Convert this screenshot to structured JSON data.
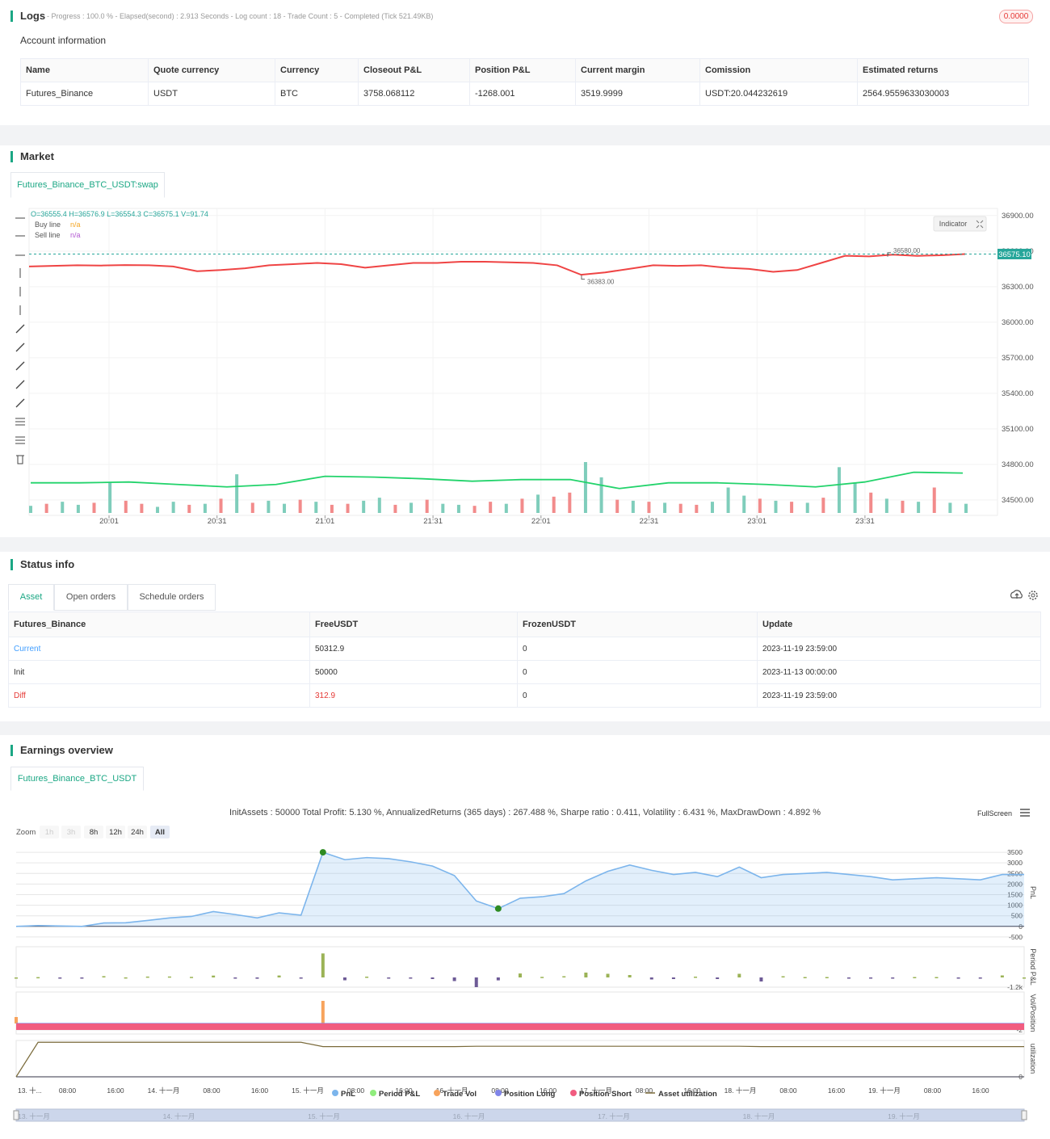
{
  "logs": {
    "title": "Logs",
    "summary": "- Progress : 100.0 % - Elapsed(second) : 2.913 Seconds - Log count : 18 - Trade Count : 5 - Completed (Tick 521.49KB)",
    "badge": "0.0000"
  },
  "account": {
    "title": "Account information",
    "table": {
      "columns": [
        "Name",
        "Quote currency",
        "Currency",
        "Closeout P&L",
        "Position P&L",
        "Current margin",
        "Comission",
        "Estimated returns"
      ],
      "rows": [
        [
          "Futures_Binance",
          "USDT",
          "BTC",
          "3758.068112",
          "-1268.001",
          "3519.9999",
          "USDT:20.044232619",
          "2564.9559633030003"
        ]
      ]
    }
  },
  "market": {
    "title": "Market",
    "tab": "Futures_Binance_BTC_USDT:swap"
  },
  "status": {
    "title": "Status info",
    "tabs": [
      "Asset",
      "Open orders",
      "Schedule orders"
    ],
    "table": {
      "columns": [
        "Futures_Binance",
        "FreeUSDT",
        "FrozenUSDT",
        "Update"
      ],
      "rows": [
        [
          "Current",
          "50312.9",
          "0",
          "2023-11-19 23:59:00"
        ],
        [
          "Init",
          "50000",
          "0",
          "2023-11-13 00:00:00"
        ],
        [
          "Diff",
          "312.9",
          "0",
          "2023-11-19 23:59:00"
        ]
      ]
    }
  },
  "earnings": {
    "title": "Earnings overview",
    "tab": "Futures_Binance_BTC_USDT",
    "fullscreen": "FullScreen",
    "zoom_label": "Zoom",
    "zoom_buttons": [
      "1h",
      "3h",
      "8h",
      "12h",
      "24h",
      "All"
    ],
    "zoom_active": "All",
    "zoom_disabled": [
      "1h",
      "3h"
    ],
    "navigator_labels": [
      "13. 十一月",
      "14. 十一月",
      "15. 十一月",
      "16. 十一月",
      "17. 十一月",
      "18. 十一月",
      "19. 十一月"
    ]
  },
  "chart_data": [
    {
      "type": "line",
      "ohlc": "O=36555.4 H=36576.9 L=36554.3 C=36575.1 V=91.74",
      "indicators": [
        {
          "name": "Buy line",
          "value": "n/a",
          "color": "#f5a623"
        },
        {
          "name": "Sell line",
          "value": "n/a",
          "color": "#b45ad3"
        }
      ],
      "indicator_button": "Indicator",
      "ylim": [
        34370,
        36960
      ],
      "yticks": [
        {
          "value": 36900,
          "label": "36900.00"
        },
        {
          "value": 36600,
          "label": "36600.00"
        },
        {
          "value": 36300,
          "label": "36300.00"
        },
        {
          "value": 36000,
          "label": "36000.00"
        },
        {
          "value": 35700,
          "label": "35700.00"
        },
        {
          "value": 35400,
          "label": "35400.00"
        },
        {
          "value": 35100,
          "label": "35100.00"
        },
        {
          "value": 34800,
          "label": "34800.00"
        },
        {
          "value": 34500,
          "label": "34500.00"
        }
      ],
      "x_labels": [
        "20:01",
        "20:31",
        "21:01",
        "21:31",
        "22:01",
        "22:31",
        "23:01",
        "23:31"
      ],
      "grid": true,
      "last_price": {
        "value": 36575.1,
        "label": "36575.10",
        "color": "#26a69a"
      },
      "high_mark": {
        "value": 36580,
        "label": "36580.00"
      },
      "low_mark": {
        "value": 36383,
        "label": "36383.00"
      },
      "price": {
        "color": "#ef4444",
        "values": [
          36470,
          36475,
          36480,
          36478,
          36482,
          36480,
          36470,
          36430,
          36440,
          36455,
          36480,
          36490,
          36500,
          36490,
          36460,
          36480,
          36500,
          36500,
          36510,
          36510,
          36505,
          36500,
          36480,
          36400,
          36420,
          36450,
          36480,
          36475,
          36480,
          36460,
          36450,
          36425,
          36440,
          36500,
          36560,
          36555,
          36570,
          36560,
          36565,
          36575
        ]
      },
      "volume": {
        "up_color": "#7fcdbb",
        "down_color": "#f28b8b",
        "values": [
          70,
          90,
          110,
          80,
          100,
          300,
          120,
          90,
          60,
          110,
          80,
          90,
          140,
          380,
          100,
          120,
          90,
          130,
          110,
          80,
          90,
          120,
          150,
          80,
          100,
          130,
          90,
          80,
          70,
          110,
          90,
          140,
          180,
          160,
          200,
          500,
          350,
          130,
          120,
          110,
          100,
          90,
          80,
          110,
          250,
          170,
          140,
          120,
          110,
          100,
          150,
          450,
          300,
          200,
          140,
          120,
          110,
          250,
          100,
          90
        ],
        "up": [
          true,
          false,
          true,
          true,
          false,
          true,
          false,
          false,
          true,
          true,
          false,
          true,
          false,
          true,
          false,
          true,
          true,
          false,
          true,
          false,
          false,
          true,
          true,
          false,
          true,
          false,
          true,
          true,
          false,
          false,
          true,
          false,
          true,
          false,
          false,
          true,
          true,
          false,
          true,
          false,
          true,
          false,
          false,
          true,
          true,
          true,
          false,
          true,
          false,
          true,
          false,
          true,
          true,
          false,
          true,
          false,
          true,
          false,
          true,
          true
        ]
      },
      "volume_ma": {
        "color": "#22d36b",
        "values": [
          296,
          296,
          304,
          280,
          256,
          280,
          360,
          352,
          336,
          312,
          328,
          328,
          240,
          296,
          296,
          280,
          256,
          304,
          400,
          392
        ]
      }
    },
    {
      "type": "line",
      "title": "InitAssets : 50000 Total Profit: 5.130 %, AnnualizedReturns (365 days) : 267.488 %, Sharpe ratio : 0.411, Volatility : 6.431 %, MaxDrawDown : 4.892 %",
      "x_labels": [
        "13. 十...",
        "08:00",
        "16:00",
        "14. 十一月",
        "08:00",
        "16:00",
        "15. 十一月",
        "08:00",
        "16:00",
        "16. 十一月",
        "08:00",
        "16:00",
        "17. 十一月",
        "08:00",
        "16:00",
        "18. 十一月",
        "08:00",
        "16:00",
        "19. 十一月",
        "08:00",
        "16:00"
      ],
      "panes": [
        {
          "label": "PnL",
          "ylim": [
            -580,
            3770
          ],
          "yticks": [
            3500,
            3000,
            2500,
            2000,
            1500,
            1000,
            500,
            0,
            -500
          ]
        },
        {
          "label": "Period P&L",
          "ylim": [
            -1200,
            3800
          ],
          "yticks": [
            {
              "value": -1200,
              "label": "-1.2k"
            }
          ]
        },
        {
          "label": "Vol/Position",
          "ylim": [
            -3.25,
            9.75
          ],
          "yticks": [
            -2
          ]
        },
        {
          "label": "utilization",
          "ylim": [
            0,
            100
          ],
          "yticks": [
            0
          ]
        }
      ],
      "grid": true,
      "marker_color": "#2e8b22",
      "marked_points": [
        14,
        22
      ],
      "series": [
        {
          "name": "PnL",
          "color": "#7cb5ec",
          "pane": 0,
          "style": "area",
          "values": [
            0,
            40,
            20,
            0,
            160,
            170,
            280,
            400,
            470,
            700,
            560,
            400,
            640,
            530,
            3500,
            3150,
            3250,
            3200,
            3050,
            2850,
            2400,
            1200,
            840,
            1330,
            1400,
            1550,
            2150,
            2600,
            2900,
            2650,
            2450,
            2550,
            2350,
            2800,
            2300,
            2450,
            2500,
            2550,
            2450,
            2350,
            2200,
            2250,
            2300,
            2250,
            2200,
            2450,
            2450
          ]
        },
        {
          "name": "Period P&L",
          "color": "#90ed7d",
          "positive_color": "#9bb356",
          "negative_color": "#6d5a96",
          "pane": 1,
          "style": "bar",
          "values": [
            0,
            40,
            -20,
            -20,
            160,
            10,
            110,
            120,
            70,
            230,
            -140,
            -160,
            240,
            -110,
            2970,
            -350,
            100,
            -50,
            -150,
            -200,
            -450,
            -1200,
            -360,
            490,
            70,
            150,
            600,
            450,
            300,
            -250,
            -200,
            100,
            -200,
            450,
            -500,
            150,
            50,
            50,
            -100,
            -100,
            -150,
            50,
            50,
            -50,
            -50,
            250,
            0
          ]
        },
        {
          "name": "Trade Vol",
          "color": "#f7a35c",
          "pane": 2,
          "style": "bar",
          "values": [
            2,
            0,
            0,
            0,
            0,
            0,
            0,
            0,
            0,
            0,
            0,
            0,
            0,
            0,
            7,
            0,
            0,
            0,
            0,
            0,
            0,
            0,
            0,
            0,
            0,
            0,
            0,
            0,
            0,
            0,
            0,
            0,
            0,
            0,
            0,
            0,
            0,
            0,
            0,
            0,
            0,
            0,
            0,
            0,
            0,
            0,
            0
          ]
        },
        {
          "name": "Position Long",
          "color": "#8085e9",
          "pane": 2,
          "style": "line",
          "values": [
            0,
            0,
            0,
            0,
            0,
            0,
            0,
            0,
            0,
            0,
            0,
            0,
            0,
            0,
            0,
            0,
            0,
            0,
            0,
            0,
            0,
            0,
            0,
            0,
            0,
            0,
            0,
            0,
            0,
            0,
            0,
            0,
            0,
            0,
            0,
            0,
            0,
            0,
            0,
            0,
            0,
            0,
            0,
            0,
            0,
            0,
            0
          ]
        },
        {
          "name": "Position Short",
          "color": "#f15c80",
          "pane": 2,
          "style": "area",
          "values": [
            -2,
            -2,
            -2,
            -2,
            -2,
            -2,
            -2,
            -2,
            -2,
            -2,
            -2,
            -2,
            -2,
            -2,
            -2,
            -2,
            -2,
            -2,
            -2,
            -2,
            -2,
            -2,
            -2,
            -2,
            -2,
            -2,
            -2,
            -2,
            -2,
            -2,
            -2,
            -2,
            -2,
            -2,
            -2,
            -2,
            -2,
            -2,
            -2,
            -2,
            -2,
            -2,
            -2,
            -2,
            -2,
            -2,
            -2
          ]
        },
        {
          "name": "Asset utilization",
          "color": "#7a6a3a",
          "pane": 3,
          "style": "line",
          "values": [
            0,
            95,
            95,
            95,
            95,
            95,
            95,
            95,
            95,
            95,
            95,
            95,
            95,
            95,
            83,
            83,
            83,
            83,
            83,
            83,
            83,
            84,
            84,
            84,
            84,
            84,
            84,
            84,
            84,
            84,
            84,
            84,
            84,
            84,
            83,
            83,
            83,
            83,
            83,
            83,
            83,
            83,
            83,
            83,
            83,
            83,
            83
          ]
        }
      ]
    }
  ]
}
